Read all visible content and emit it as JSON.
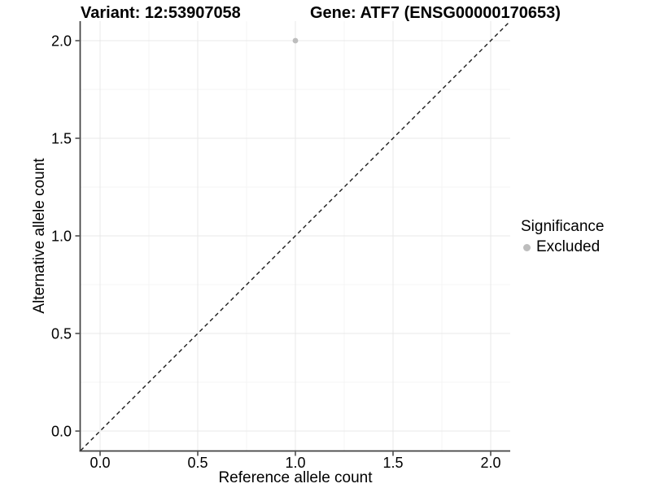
{
  "chart_data": {
    "type": "scatter",
    "title_left": "Variant: 12:53907058",
    "title_right": "Gene: ATF7 (ENSG00000170653)",
    "xlabel": "Reference allele count",
    "ylabel": "Alternative allele count",
    "xlim": [
      -0.1,
      2.1
    ],
    "ylim": [
      -0.1,
      2.1
    ],
    "xticks": [
      0,
      0.5,
      1,
      1.5,
      2
    ],
    "yticks": [
      0,
      0.5,
      1,
      1.5,
      2
    ],
    "xtick_labels": [
      "0.0",
      "0.5",
      "1.0",
      "1.5",
      "2.0"
    ],
    "ytick_labels": [
      "0.0",
      "0.5",
      "1.0",
      "1.5",
      "2.0"
    ],
    "minor_ticks_x": [
      0.25,
      0.75,
      1.25,
      1.75
    ],
    "minor_ticks_y": [
      0.25,
      0.75,
      1.25,
      1.75
    ],
    "grid": "major+minor",
    "points": [
      {
        "x": 1.0,
        "y": 2.0,
        "series": "Excluded"
      }
    ],
    "identity_line": {
      "style": "dashed",
      "x1": -0.1,
      "y1": -0.1,
      "x2": 2.1,
      "y2": 2.1
    },
    "legend": {
      "title": "Significance",
      "position": "right",
      "entries": [
        {
          "label": "Excluded",
          "color": "#bdbdbd",
          "marker": "circle"
        }
      ]
    },
    "colors": {
      "background": "#ffffff",
      "point": "#bdbdbd",
      "grid_major": "#e9e9e9",
      "grid_minor": "#f4f4f4",
      "axis_line": "#404040",
      "tick_mark": "#333333",
      "text": "#000000",
      "identity_line": "#1a1a1a"
    }
  }
}
